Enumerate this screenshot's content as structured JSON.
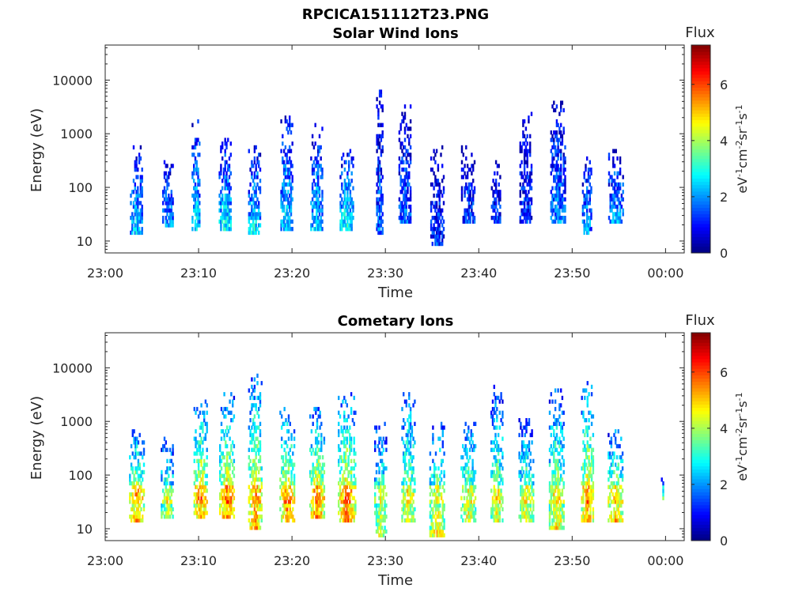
{
  "figure": {
    "title": "RPCICA151112T23.PNG",
    "colors": {
      "axis": "#262626",
      "background": "#ffffff"
    }
  },
  "chart_data": [
    {
      "type": "heatmap",
      "title": "Solar Wind Ions",
      "xlabel": "Time",
      "ylabel": "Energy (eV)",
      "x_ticks": [
        "23:00",
        "23:10",
        "23:20",
        "23:30",
        "23:40",
        "23:50",
        "00:00"
      ],
      "x_tick_minutes": [
        0,
        10,
        20,
        30,
        40,
        50,
        60
      ],
      "xlim_minutes": [
        0,
        62
      ],
      "y_scale": "log",
      "y_ticks": [
        "10",
        "100",
        "1000",
        "10000"
      ],
      "y_tick_values": [
        10,
        100,
        1000,
        10000
      ],
      "ylim": [
        6,
        45000
      ],
      "colorbar": {
        "label": "Flux",
        "unit": "eV-1cm-2sr-1s-1",
        "unit_parts": [
          [
            "eV",
            "-1"
          ],
          [
            "cm",
            "-2"
          ],
          [
            "sr",
            "-1"
          ],
          [
            "s",
            "-1"
          ]
        ],
        "ticks": [
          "0",
          "2",
          "4",
          "6"
        ],
        "tick_values": [
          0,
          2,
          4,
          6
        ],
        "range": [
          0,
          7.4
        ],
        "colormap": "jet"
      },
      "bursts": [
        {
          "t": 3.3,
          "w": 1.3,
          "emin": 12,
          "emax": 550,
          "level": 2.6
        },
        {
          "t": 6.7,
          "w": 1.2,
          "emin": 18,
          "emax": 300,
          "level": 2.1
        },
        {
          "t": 9.7,
          "w": 0.9,
          "emin": 15,
          "emax": 1800,
          "level": 2.8
        },
        {
          "t": 12.8,
          "w": 1.3,
          "emin": 15,
          "emax": 750,
          "level": 3.0
        },
        {
          "t": 15.9,
          "w": 1.2,
          "emin": 12,
          "emax": 650,
          "level": 2.9
        },
        {
          "t": 19.4,
          "w": 1.3,
          "emin": 15,
          "emax": 2000,
          "level": 2.7
        },
        {
          "t": 22.6,
          "w": 1.3,
          "emin": 15,
          "emax": 1500,
          "level": 2.6
        },
        {
          "t": 25.8,
          "w": 1.4,
          "emin": 15,
          "emax": 450,
          "level": 3.2
        },
        {
          "t": 29.3,
          "w": 0.6,
          "emin": 12,
          "emax": 6000,
          "level": 1.8
        },
        {
          "t": 32.0,
          "w": 1.2,
          "emin": 20,
          "emax": 3500,
          "level": 1.8
        },
        {
          "t": 35.5,
          "w": 1.4,
          "emin": 8,
          "emax": 550,
          "level": 1.4
        },
        {
          "t": 38.8,
          "w": 1.4,
          "emin": 20,
          "emax": 600,
          "level": 1.6
        },
        {
          "t": 41.8,
          "w": 1.0,
          "emin": 20,
          "emax": 300,
          "level": 1.4
        },
        {
          "t": 45.0,
          "w": 1.3,
          "emin": 20,
          "emax": 2500,
          "level": 1.4
        },
        {
          "t": 48.4,
          "w": 1.5,
          "emin": 22,
          "emax": 3800,
          "level": 2.0
        },
        {
          "t": 51.5,
          "w": 0.9,
          "emin": 12,
          "emax": 350,
          "level": 2.4
        },
        {
          "t": 54.6,
          "w": 1.5,
          "emin": 20,
          "emax": 500,
          "level": 2.4
        }
      ]
    },
    {
      "type": "heatmap",
      "title": "Cometary Ions",
      "xlabel": "Time",
      "ylabel": "Energy (eV)",
      "x_ticks": [
        "23:00",
        "23:10",
        "23:20",
        "23:30",
        "23:40",
        "23:50",
        "00:00"
      ],
      "x_tick_minutes": [
        0,
        10,
        20,
        30,
        40,
        50,
        60
      ],
      "xlim_minutes": [
        0,
        62
      ],
      "y_scale": "log",
      "y_ticks": [
        "10",
        "100",
        "1000",
        "10000"
      ],
      "y_tick_values": [
        10,
        100,
        1000,
        10000
      ],
      "ylim": [
        6,
        45000
      ],
      "colorbar": {
        "label": "Flux",
        "unit": "eV-1cm-2sr-1s-1",
        "unit_parts": [
          [
            "eV",
            "-1"
          ],
          [
            "cm",
            "-2"
          ],
          [
            "sr",
            "-1"
          ],
          [
            "s",
            "-1"
          ]
        ],
        "ticks": [
          "0",
          "2",
          "4",
          "6"
        ],
        "tick_values": [
          0,
          2,
          4,
          6
        ],
        "range": [
          0,
          7.4
        ],
        "colormap": "jet"
      },
      "bursts": [
        {
          "t": 3.3,
          "w": 1.5,
          "emin": 12,
          "emax": 650,
          "level": 5.6
        },
        {
          "t": 6.6,
          "w": 1.3,
          "emin": 15,
          "emax": 450,
          "level": 4.4
        },
        {
          "t": 10.2,
          "w": 1.5,
          "emin": 15,
          "emax": 2500,
          "level": 5.5
        },
        {
          "t": 13.0,
          "w": 1.6,
          "emin": 15,
          "emax": 3300,
          "level": 5.6
        },
        {
          "t": 16.0,
          "w": 1.4,
          "emin": 10,
          "emax": 7000,
          "level": 5.6
        },
        {
          "t": 19.4,
          "w": 1.5,
          "emin": 12,
          "emax": 2000,
          "level": 5.7
        },
        {
          "t": 22.6,
          "w": 1.5,
          "emin": 15,
          "emax": 1800,
          "level": 5.7
        },
        {
          "t": 25.8,
          "w": 1.8,
          "emin": 12,
          "emax": 3000,
          "level": 5.8
        },
        {
          "t": 29.4,
          "w": 1.2,
          "emin": 7,
          "emax": 900,
          "level": 4.6
        },
        {
          "t": 32.4,
          "w": 1.4,
          "emin": 12,
          "emax": 3500,
          "level": 4.8
        },
        {
          "t": 35.5,
          "w": 1.6,
          "emin": 7,
          "emax": 900,
          "level": 5.0
        },
        {
          "t": 38.8,
          "w": 1.5,
          "emin": 12,
          "emax": 1000,
          "level": 4.8
        },
        {
          "t": 41.9,
          "w": 1.3,
          "emin": 12,
          "emax": 4500,
          "level": 4.6
        },
        {
          "t": 45.0,
          "w": 1.5,
          "emin": 12,
          "emax": 1000,
          "level": 4.7
        },
        {
          "t": 48.3,
          "w": 1.6,
          "emin": 10,
          "emax": 4000,
          "level": 4.9
        },
        {
          "t": 51.6,
          "w": 1.3,
          "emin": 12,
          "emax": 5500,
          "level": 5.6
        },
        {
          "t": 54.6,
          "w": 1.6,
          "emin": 12,
          "emax": 700,
          "level": 5.3
        },
        {
          "t": 59.6,
          "w": 0.2,
          "emin": 35,
          "emax": 90,
          "level": 2.8
        }
      ]
    }
  ]
}
